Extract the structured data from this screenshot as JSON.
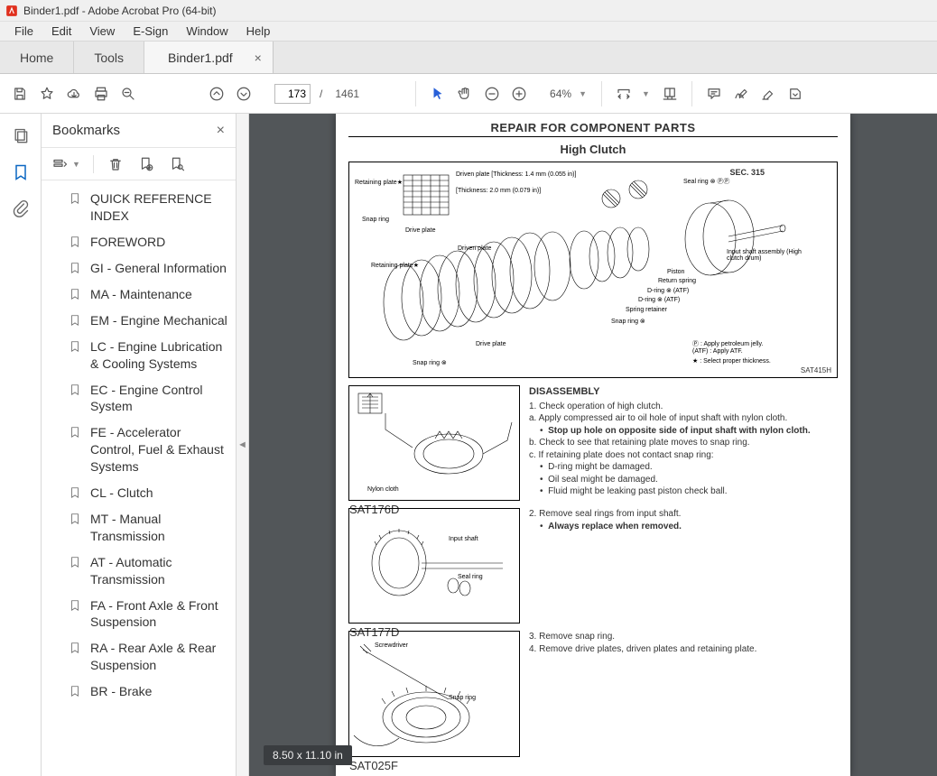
{
  "window": {
    "title": "Binder1.pdf - Adobe Acrobat Pro (64-bit)"
  },
  "menu": {
    "items": [
      "File",
      "Edit",
      "View",
      "E-Sign",
      "Window",
      "Help"
    ]
  },
  "tabs": {
    "main": [
      "Home",
      "Tools"
    ],
    "doc": {
      "name": "Binder1.pdf",
      "close": "×"
    }
  },
  "toolbar": {
    "page_current": "173",
    "page_sep": "/",
    "page_total": "1461",
    "zoom": "64%"
  },
  "bookmarks": {
    "title": "Bookmarks",
    "close": "×",
    "items": [
      "QUICK REFERENCE INDEX",
      "FOREWORD",
      "GI - General Information",
      "MA - Maintenance",
      "EM - Engine Mechanical",
      "LC - Engine Lubrication & Cooling Systems",
      "EC - Engine Control System",
      "FE -  Accelerator Control, Fuel & Exhaust Systems",
      "CL - Clutch",
      "MT - Manual Transmission",
      "AT - Automatic Transmission",
      "FA - Front Axle & Front Suspension",
      "RA - Rear Axle & Rear Suspension",
      "BR - Brake"
    ]
  },
  "document": {
    "header_title": "REPAIR FOR COMPONENT PARTS",
    "sub_title": "High Clutch",
    "main_fig": {
      "section": "SEC. 315",
      "tag": "SAT415H",
      "labels": {
        "retaining_plate_top": "Retaining plate★",
        "driven_plate": "Driven plate [Thickness: 1.4 mm (0.055 in)]",
        "drive_plate_top": "Drive plate",
        "thickness2": "[Thickness: 2.0 mm (0.079 in)]",
        "snap_ring_top": "Snap ring",
        "driven_plate_mid": "Driven plate",
        "retaining_plate_mid": "Retaining plate★",
        "drive_plate_mid": "Drive plate",
        "snap_ring_mid": "Snap ring ⊗",
        "seal_ring": "Seal ring ⊗ ⓅⓅ",
        "input_shaft": "Input shaft assembly (High clutch drum)",
        "piston": "Piston",
        "return_spring": "Return spring",
        "dring1": "D-ring ⊗ (ATF)",
        "dring2": "D-ring ⊗ (ATF)",
        "spring_retainer": "Spring retainer",
        "snap_ring_r": "Snap ring ⊗",
        "note_p": "Ⓟ : Apply petroleum jelly.",
        "note_atf": "(ATF) : Apply ATF.",
        "note_star": "★ : Select proper thickness."
      }
    },
    "fig2": {
      "tag": "SAT176D",
      "label_nylon": "Nylon cloth"
    },
    "fig3": {
      "tag": "SAT177D",
      "label_input": "Input shaft",
      "label_seal": "Seal ring"
    },
    "fig4": {
      "tag": "SAT025F",
      "label_screw": "Screwdriver",
      "label_snap": "Snap ring"
    },
    "disassembly": {
      "heading": "DISASSEMBLY",
      "line1": "1.   Check operation of high clutch.",
      "line_a": "a.   Apply compressed air to oil hole of input shaft with nylon cloth.",
      "bullet1": "Stop up hole on opposite side of input shaft with nylon cloth.",
      "line_b": "b.   Check to see that retaining plate moves to snap ring.",
      "line_c": "c.   If retaining plate does not contact snap ring:",
      "bullet2": "D-ring might be damaged.",
      "bullet3": "Oil seal might be damaged.",
      "bullet4": "Fluid might be leaking past piston check ball.",
      "line2": "2.   Remove seal rings from input shaft.",
      "bullet5": "Always replace when removed.",
      "line3": "3.   Remove snap ring.",
      "line4": "4.   Remove drive plates, driven plates and retaining plate."
    },
    "size_badge": "8.50 x 11.10 in"
  },
  "colors": {
    "doc_bg": "#525659",
    "accent": "#0a66c2"
  }
}
